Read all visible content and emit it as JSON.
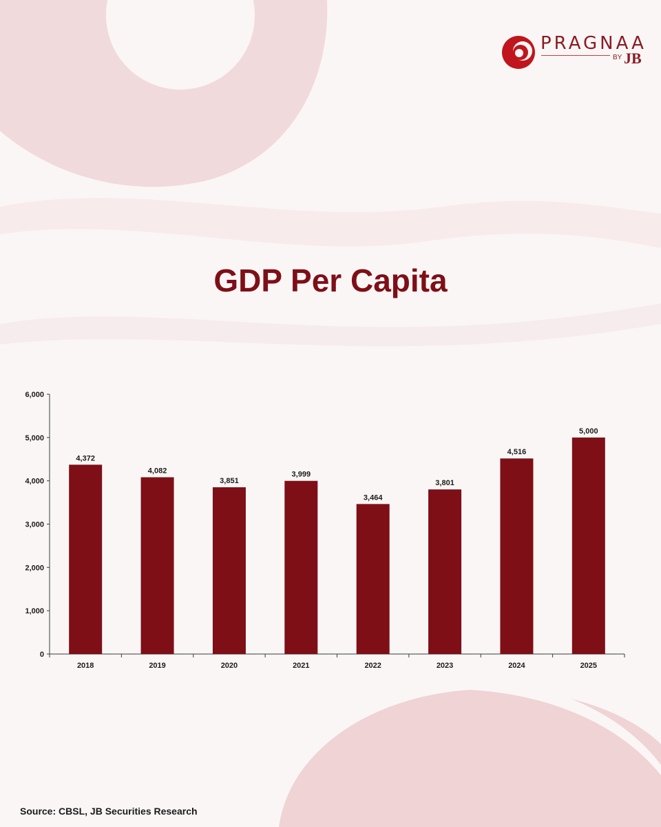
{
  "brand": {
    "name": "PRAGNAA",
    "by": "BY",
    "mark": "JB",
    "color": "#8a1c22"
  },
  "title": "GDP Per Capita",
  "source": "Source: CBSL, JB Securities Research",
  "colors": {
    "bar": "#7e0f17",
    "title": "#7e0f17",
    "axis": "#3a3a3a",
    "label": "#1a1a1a"
  },
  "chart_data": {
    "type": "bar",
    "categories": [
      "2018",
      "2019",
      "2020",
      "2021",
      "2022",
      "2023",
      "2024",
      "2025"
    ],
    "values": [
      4372,
      4082,
      3851,
      3999,
      3464,
      3801,
      4516,
      5000
    ],
    "value_labels": [
      "4,372",
      "4,082",
      "3,851",
      "3,999",
      "3,464",
      "3,801",
      "4,516",
      "5,000"
    ],
    "yticks": [
      0,
      1000,
      2000,
      3000,
      4000,
      5000,
      6000
    ],
    "ytick_labels": [
      "0",
      "1,000",
      "2,000",
      "3,000",
      "4,000",
      "5,000",
      "6,000"
    ],
    "ylim": [
      0,
      6000
    ],
    "grid": false,
    "legend": "none"
  }
}
